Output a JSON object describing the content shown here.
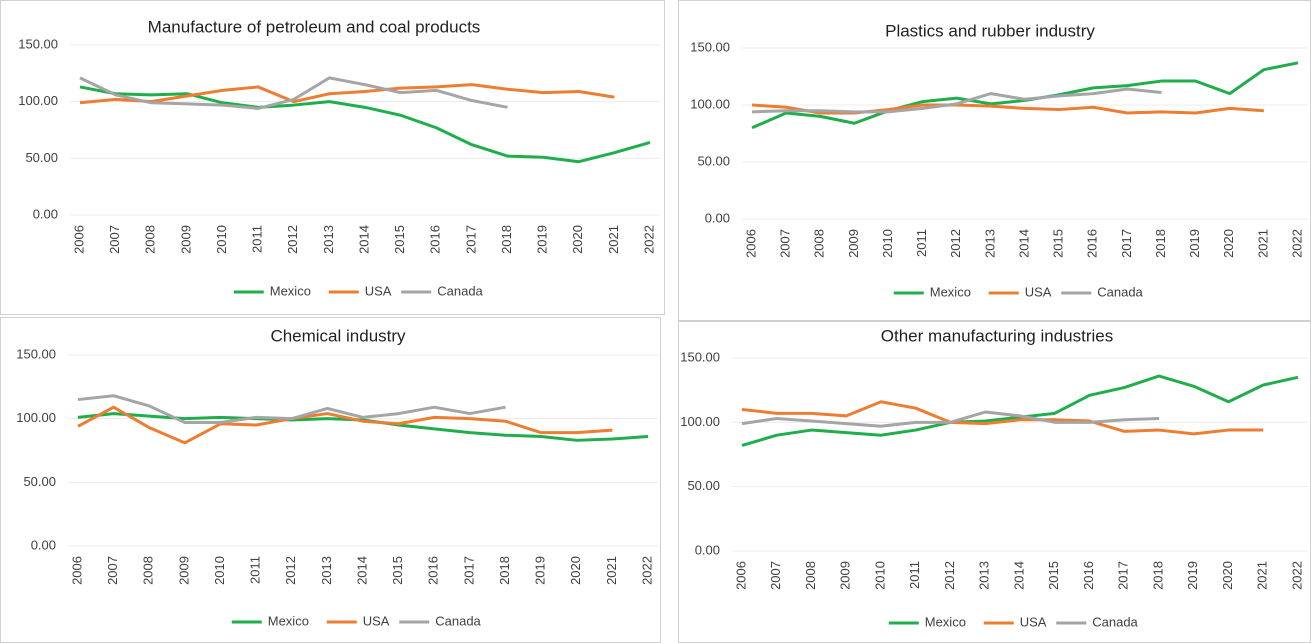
{
  "chart_data": [
    {
      "type": "line",
      "title": "Manufacture of petroleum and coal products",
      "categories": [
        "2006",
        "2007",
        "2008",
        "2009",
        "2010",
        "2011",
        "2012",
        "2013",
        "2014",
        "2015",
        "2016",
        "2017",
        "2018",
        "2019",
        "2020",
        "2021",
        "2022"
      ],
      "series": [
        {
          "name": "Mexico",
          "color": "#1fae4b",
          "values": [
            113,
            107,
            106,
            107,
            99,
            95,
            97,
            100,
            95,
            88,
            77,
            62,
            52,
            51,
            47,
            55,
            64
          ]
        },
        {
          "name": "USA",
          "color": "#ed7d31",
          "values": [
            99,
            102,
            100,
            105,
            110,
            113,
            100,
            107,
            109,
            112,
            113,
            115,
            111,
            108,
            109,
            104,
            null
          ]
        },
        {
          "name": "Canada",
          "color": "#a5a5a5",
          "values": [
            121,
            106,
            99,
            98,
            97,
            94,
            102,
            121,
            115,
            108,
            110,
            101,
            95,
            null,
            null,
            null,
            null
          ]
        }
      ],
      "ylim": [
        0,
        150
      ],
      "yticks": [
        {
          "value": 0,
          "label": "0.00"
        },
        {
          "value": 50,
          "label": "50.00"
        },
        {
          "value": 100,
          "label": "100.00"
        },
        {
          "value": 150,
          "label": "150.00"
        }
      ],
      "grid": true,
      "legend": "bottom"
    },
    {
      "type": "line",
      "title": "Plastics and rubber industry",
      "categories": [
        "2006",
        "2007",
        "2008",
        "2009",
        "2010",
        "2011",
        "2012",
        "2013",
        "2014",
        "2015",
        "2016",
        "2017",
        "2018",
        "2019",
        "2020",
        "2021",
        "2022"
      ],
      "series": [
        {
          "name": "Mexico",
          "color": "#1fae4b",
          "values": [
            80,
            93,
            90,
            84,
            95,
            103,
            106,
            101,
            104,
            109,
            115,
            117,
            121,
            121,
            110,
            131,
            137
          ]
        },
        {
          "name": "USA",
          "color": "#ed7d31",
          "values": [
            100,
            98,
            93,
            93,
            96,
            100,
            100,
            99,
            97,
            96,
            98,
            93,
            94,
            93,
            97,
            95,
            null
          ]
        },
        {
          "name": "Canada",
          "color": "#a5a5a5",
          "values": [
            94,
            95,
            95,
            94,
            94,
            97,
            101,
            110,
            105,
            108,
            110,
            114,
            111,
            null,
            null,
            null,
            null
          ]
        }
      ],
      "ylim": [
        0,
        150
      ],
      "yticks": [
        {
          "value": 0,
          "label": "0.00"
        },
        {
          "value": 50,
          "label": "50.00"
        },
        {
          "value": 100,
          "label": "100.00"
        },
        {
          "value": 150,
          "label": "150.00"
        }
      ],
      "grid": true,
      "legend": "bottom"
    },
    {
      "type": "line",
      "title": "Chemical industry",
      "categories": [
        "2006",
        "2007",
        "2008",
        "2009",
        "2010",
        "2011",
        "2012",
        "2013",
        "2014",
        "2015",
        "2016",
        "2017",
        "2018",
        "2019",
        "2020",
        "2021",
        "2022"
      ],
      "series": [
        {
          "name": "Mexico",
          "color": "#1fae4b",
          "values": [
            101,
            104,
            102,
            100,
            101,
            100,
            99,
            100,
            99,
            95,
            92,
            89,
            87,
            86,
            83,
            84,
            86
          ]
        },
        {
          "name": "USA",
          "color": "#ed7d31",
          "values": [
            94,
            109,
            93,
            81,
            96,
            95,
            100,
            104,
            98,
            96,
            101,
            100,
            98,
            89,
            89,
            91,
            null
          ]
        },
        {
          "name": "Canada",
          "color": "#a5a5a5",
          "values": [
            115,
            118,
            110,
            97,
            97,
            101,
            100,
            108,
            101,
            104,
            109,
            104,
            109,
            null,
            null,
            null,
            null
          ]
        }
      ],
      "ylim": [
        0,
        150
      ],
      "yticks": [
        {
          "value": 0,
          "label": "0.00"
        },
        {
          "value": 50,
          "label": "50.00"
        },
        {
          "value": 100,
          "label": "100.00"
        },
        {
          "value": 150,
          "label": "150.00"
        }
      ],
      "grid": true,
      "legend": "bottom"
    },
    {
      "type": "line",
      "title": "Other manufacturing industries",
      "categories": [
        "2006",
        "2007",
        "2008",
        "2009",
        "2010",
        "2011",
        "2012",
        "2013",
        "2014",
        "2015",
        "2016",
        "2017",
        "2018",
        "2019",
        "2020",
        "2021",
        "2022"
      ],
      "series": [
        {
          "name": "Mexico",
          "color": "#1fae4b",
          "values": [
            82,
            90,
            94,
            92,
            90,
            94,
            100,
            101,
            104,
            107,
            121,
            127,
            136,
            128,
            116,
            129,
            135
          ]
        },
        {
          "name": "USA",
          "color": "#ed7d31",
          "values": [
            110,
            107,
            107,
            105,
            116,
            111,
            100,
            99,
            102,
            102,
            101,
            93,
            94,
            91,
            94,
            94,
            null
          ]
        },
        {
          "name": "Canada",
          "color": "#a5a5a5",
          "values": [
            99,
            103,
            101,
            99,
            97,
            100,
            100,
            108,
            105,
            100,
            100,
            102,
            103,
            null,
            null,
            null,
            null
          ]
        }
      ],
      "ylim": [
        0,
        150
      ],
      "yticks": [
        {
          "value": 0,
          "label": "0.00"
        },
        {
          "value": 50,
          "label": "50.00"
        },
        {
          "value": 100,
          "label": "100.00"
        },
        {
          "value": 150,
          "label": "150.00"
        }
      ],
      "grid": true,
      "legend": "bottom"
    }
  ]
}
